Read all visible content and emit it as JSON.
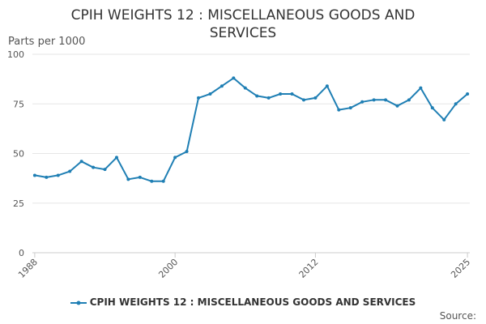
{
  "chart_data": {
    "type": "line",
    "title_line1": "CPIH WEIGHTS 12 : MISCELLANEOUS GOODS AND",
    "title_line2": "SERVICES",
    "ylabel": "Parts per 1000",
    "xlabel": "",
    "ylim": [
      0,
      100
    ],
    "y_ticks": [
      "0",
      "25",
      "50",
      "75",
      "100"
    ],
    "x_ticks": [
      "1988",
      "2000",
      "2012",
      "2025"
    ],
    "grid": true,
    "legend_position": "bottom",
    "source_label": "Source:",
    "series": [
      {
        "name": "CPIH WEIGHTS 12 : MISCELLANEOUS GOODS AND SERVICES",
        "color": "#1f7fb4",
        "x": [
          1988,
          1989,
          1990,
          1991,
          1992,
          1993,
          1994,
          1995,
          1996,
          1997,
          1998,
          1999,
          2000,
          2001,
          2002,
          2003,
          2004,
          2005,
          2006,
          2007,
          2008,
          2009,
          2010,
          2011,
          2012,
          2013,
          2014,
          2015,
          2016,
          2017,
          2018,
          2019,
          2020,
          2021,
          2022,
          2023,
          2024,
          2025
        ],
        "values": [
          39,
          38,
          39,
          41,
          46,
          43,
          42,
          48,
          37,
          38,
          36,
          36,
          48,
          51,
          78,
          80,
          84,
          88,
          83,
          79,
          78,
          80,
          80,
          77,
          78,
          84,
          72,
          73,
          76,
          77,
          77,
          74,
          77,
          83,
          73,
          67,
          75,
          80
        ]
      }
    ]
  }
}
